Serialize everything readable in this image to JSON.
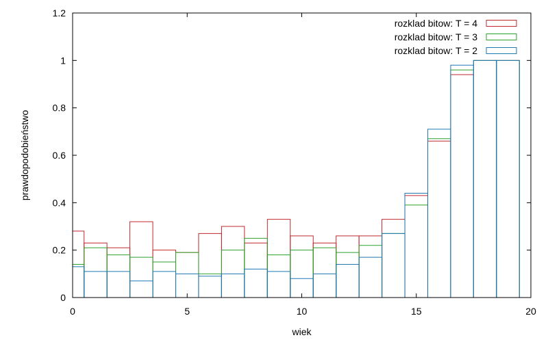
{
  "chart_data": {
    "type": "bar",
    "title": "",
    "xlabel": "wiek",
    "ylabel": "prawdopodobieństwo",
    "xlim": [
      0,
      20
    ],
    "ylim": [
      0,
      1.2
    ],
    "x_ticks": [
      0,
      5,
      10,
      15,
      20
    ],
    "x_tick_labels": [
      "0",
      "5",
      "10",
      "15",
      "20"
    ],
    "y_ticks": [
      0,
      0.2,
      0.4,
      0.6,
      0.8,
      1,
      1.2
    ],
    "y_tick_labels": [
      "0",
      "0.2",
      "0.4",
      "0.6",
      "0.8",
      "1",
      "1.2"
    ],
    "grid": false,
    "legend_position": "top-right",
    "bin_width": 1,
    "x": [
      0,
      1,
      2,
      3,
      4,
      5,
      6,
      7,
      8,
      9,
      10,
      11,
      12,
      13,
      14,
      15,
      16,
      17,
      18,
      19
    ],
    "series": [
      {
        "name": "rozklad bitow: T = 4",
        "color": "#c0282d",
        "values": [
          0.28,
          0.23,
          0.21,
          0.32,
          0.2,
          0.19,
          0.27,
          0.3,
          0.23,
          0.33,
          0.26,
          0.23,
          0.26,
          0.26,
          0.33,
          0.43,
          0.66,
          0.94,
          1.0,
          1.0
        ]
      },
      {
        "name": "rozklad bitow: T = 3",
        "color": "#2ca02c",
        "values": [
          0.14,
          0.21,
          0.18,
          0.17,
          0.15,
          0.19,
          0.1,
          0.2,
          0.25,
          0.18,
          0.2,
          0.21,
          0.19,
          0.22,
          0.27,
          0.39,
          0.67,
          0.96,
          1.0,
          1.0
        ]
      },
      {
        "name": "rozklad bitow: T = 2",
        "color": "#1f77b4",
        "values": [
          0.13,
          0.11,
          0.11,
          0.07,
          0.11,
          0.1,
          0.09,
          0.1,
          0.12,
          0.11,
          0.08,
          0.1,
          0.14,
          0.17,
          0.27,
          0.44,
          0.71,
          0.98,
          1.0,
          1.0
        ]
      }
    ]
  }
}
